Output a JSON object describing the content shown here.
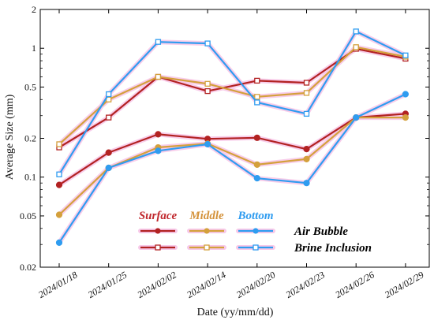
{
  "chart_data": {
    "type": "line",
    "xlabel": "Date  (yy/mm/dd)",
    "ylabel": "Average Size (mm)",
    "yscale": "log",
    "ylim": [
      0.02,
      2
    ],
    "yticks": [
      "0.02",
      "0.05",
      "0.1",
      "0.2",
      "0.5",
      "1",
      "2"
    ],
    "ytick_values": [
      0.02,
      0.05,
      0.1,
      0.2,
      0.5,
      1,
      2
    ],
    "categories": [
      "2024/01/18",
      "2024/01/25",
      "2024/02/02",
      "2024/02/14",
      "2024/02/20",
      "2024/02/23",
      "2024/02/26",
      "2024/02/29"
    ],
    "series": [
      {
        "key": "surface-air",
        "layer": "Surface",
        "kind": "Air Bubble",
        "color": "#b22222",
        "marker": "filled-circle",
        "values": [
          0.087,
          0.155,
          0.215,
          0.198,
          0.202,
          0.165,
          0.29,
          0.31
        ]
      },
      {
        "key": "surface-brine",
        "layer": "Surface",
        "kind": "Brine Inclusion",
        "color": "#b22222",
        "marker": "open-square",
        "values": [
          0.17,
          0.29,
          0.6,
          0.465,
          0.56,
          0.54,
          0.99,
          0.83
        ]
      },
      {
        "key": "middle-air",
        "layer": "Middle",
        "kind": "Air Bubble",
        "color": "#d4a03c",
        "marker": "filled-circle",
        "values": [
          0.051,
          0.118,
          0.17,
          0.182,
          0.125,
          0.138,
          0.29,
          0.29
        ]
      },
      {
        "key": "middle-brine",
        "layer": "Middle",
        "kind": "Brine Inclusion",
        "color": "#d4a03c",
        "marker": "open-square",
        "values": [
          0.18,
          0.4,
          0.6,
          0.53,
          0.42,
          0.45,
          1.02,
          0.86
        ]
      },
      {
        "key": "bottom-air",
        "layer": "Bottom",
        "kind": "Air Bubble",
        "color": "#2f9cf0",
        "marker": "filled-circle",
        "values": [
          0.031,
          0.118,
          0.16,
          0.18,
          0.098,
          0.09,
          0.29,
          0.44
        ]
      },
      {
        "key": "bottom-brine",
        "layer": "Bottom",
        "kind": "Brine Inclusion",
        "color": "#2f9cf0",
        "marker": "open-square",
        "values": [
          0.105,
          0.44,
          1.12,
          1.09,
          0.38,
          0.31,
          1.35,
          0.88
        ]
      }
    ],
    "legend": {
      "headers": [
        {
          "label": "Surface",
          "color": "#c0282d"
        },
        {
          "label": "Middle",
          "color": "#d4923a"
        },
        {
          "label": "Bottom",
          "color": "#2f9cf0"
        }
      ],
      "rows": [
        "Air Bubble",
        "Brine Inclusion"
      ],
      "placement": "bottom-center"
    },
    "shadow_color": "#f7c8e8",
    "grid": false
  }
}
